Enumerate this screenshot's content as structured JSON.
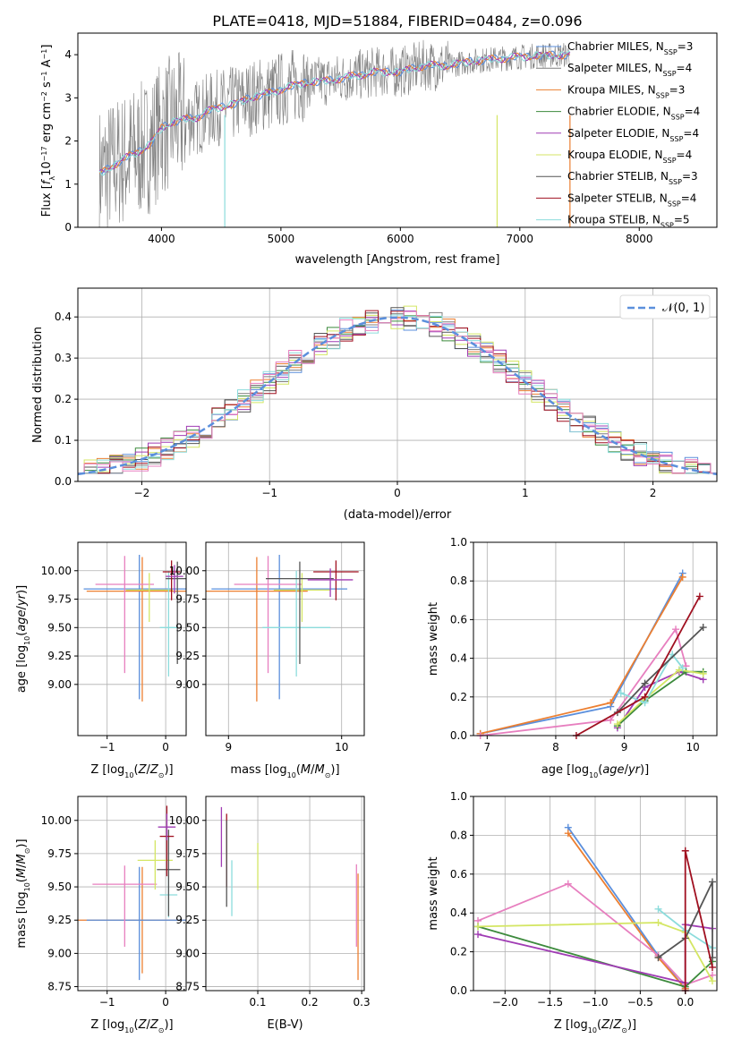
{
  "figure_title": "PLATE=0418, MJD=51884, FIBERID=0484, z=0.096",
  "colors": {
    "Chabrier MILES": "#5b8fdc",
    "Salpeter MILES": "#7f7f7f",
    "Kroupa MILES": "#ec7f31",
    "Chabrier ELODIE": "#3c8a3c",
    "Salpeter ELODIE": "#a03cb4",
    "Kroupa ELODIE": "#d4e664",
    "Chabrier STELIB": "#555555",
    "Salpeter STELIB": "#a01020",
    "Kroupa STELIB": "#8cdcdc",
    "pink": "#e77fbf"
  },
  "chart_data": [
    {
      "id": "spectrum",
      "type": "line",
      "title": "PLATE=0418, MJD=51884, FIBERID=0484, z=0.096",
      "xlabel": "wavelength [Angstrom, rest frame]",
      "ylabel": "Flux [f_λ 10^-17 erg cm^-2 s^-1 A^-1]",
      "xlim": [
        3300,
        8650
      ],
      "ylim": [
        0,
        4.5
      ],
      "xticks": [
        4000,
        5000,
        6000,
        7000,
        8000
      ],
      "yticks": [
        0,
        1,
        2,
        3,
        4
      ],
      "legend": [
        "Chabrier MILES, N_SSP=3",
        "Salpeter MILES, N_SSP=4",
        "Kroupa MILES, N_SSP=3",
        "Chabrier ELODIE, N_SSP=4",
        "Salpeter ELODIE, N_SSP=4",
        "Kroupa ELODIE, N_SSP=4",
        "Chabrier STELIB, N_SSP=3",
        "Salpeter STELIB, N_SSP=4",
        "Kroupa STELIB, N_SSP=5"
      ],
      "legend_position": "lower-right",
      "model_curve": {
        "x": [
          3500,
          3600,
          3700,
          3800,
          3900,
          4000,
          4100,
          4200,
          4300,
          4400,
          4500,
          4600,
          4700,
          4800,
          4900,
          5000,
          5200,
          5400,
          5600,
          5800,
          6000,
          6200,
          6400,
          6600,
          6800,
          7000,
          7200,
          7400
        ],
        "y": [
          1.25,
          1.45,
          1.6,
          1.75,
          1.9,
          2.3,
          2.45,
          2.5,
          2.55,
          2.7,
          2.8,
          2.85,
          2.95,
          3.05,
          3.1,
          3.2,
          3.35,
          3.4,
          3.5,
          3.6,
          3.6,
          3.75,
          3.75,
          3.85,
          3.9,
          3.95,
          3.98,
          4.0
        ]
      }
    },
    {
      "id": "residuals",
      "type": "line",
      "xlabel": "(data-model)/error",
      "ylabel": "Normed distribution",
      "xlim": [
        -2.5,
        2.5
      ],
      "ylim": [
        0,
        0.47
      ],
      "xticks": [
        -2,
        -1,
        0,
        1,
        2
      ],
      "yticks": [
        0.0,
        0.1,
        0.2,
        0.3,
        0.4
      ],
      "legend": [
        "𝒩(0, 1)"
      ],
      "legend_position": "top-right",
      "reference_curve": "gaussian N(0,1)"
    },
    {
      "id": "age-vs-Z",
      "type": "scatter",
      "xlabel": "Z [log10(Z/Z⊙)]",
      "ylabel": "age  [log10(age/yr)]",
      "xlim": [
        -1.5,
        0.35
      ],
      "ylim": [
        8.55,
        10.25
      ],
      "xticks": [
        -1,
        0
      ],
      "yticks": [
        9.0,
        9.25,
        9.5,
        9.75,
        10.0
      ],
      "points": [
        {
          "series": "Chabrier MILES",
          "x": -0.45,
          "y": 9.84,
          "xerr": 0.95,
          "yerr": [
            0.97,
            0.3
          ]
        },
        {
          "series": "Kroupa MILES",
          "x": -0.4,
          "y": 9.82,
          "xerr": 0.95,
          "yerr": [
            0.97,
            0.3
          ]
        },
        {
          "series": "pink",
          "x": -0.7,
          "y": 9.88,
          "xerr": 0.5,
          "yerr": [
            0.78,
            0.25
          ]
        },
        {
          "series": "Kroupa ELODIE",
          "x": -0.28,
          "y": 9.83,
          "xerr": 0.4,
          "yerr": [
            0.28,
            0.15
          ]
        },
        {
          "series": "Kroupa STELIB",
          "x": 0.05,
          "y": 9.5,
          "xerr": 0.15,
          "yerr": [
            0.43,
            0.5
          ]
        },
        {
          "series": "Chabrier STELIB",
          "x": 0.2,
          "y": 9.93,
          "xerr": 0.2,
          "yerr": [
            0.75,
            0.15
          ]
        },
        {
          "series": "Salpeter STELIB",
          "x": 0.1,
          "y": 9.99,
          "xerr": 0.15,
          "yerr": [
            0.25,
            0.1
          ]
        },
        {
          "series": "Salpeter ELODIE",
          "x": 0.15,
          "y": 9.95,
          "xerr": 0.15,
          "yerr": [
            0.15,
            0.1
          ]
        }
      ]
    },
    {
      "id": "age-vs-mass",
      "type": "scatter",
      "xlabel": "mass [log10(M/M⊙)]",
      "ylabel": "",
      "xlim": [
        8.8,
        10.2
      ],
      "ylim": [
        8.55,
        10.25
      ],
      "xticks": [
        9,
        10
      ],
      "yticks": [
        9.0,
        9.25,
        9.5,
        9.75,
        10.0
      ],
      "points": [
        {
          "series": "Chabrier MILES",
          "x": 9.45,
          "y": 9.84,
          "xerr": 0.6,
          "yerr": [
            0.97,
            0.3
          ]
        },
        {
          "series": "Kroupa MILES",
          "x": 9.25,
          "y": 9.82,
          "xerr": 0.45,
          "yerr": [
            0.97,
            0.3
          ]
        },
        {
          "series": "pink",
          "x": 9.35,
          "y": 9.88,
          "xerr": 0.3,
          "yerr": [
            0.78,
            0.25
          ]
        },
        {
          "series": "Kroupa ELODIE",
          "x": 9.65,
          "y": 9.83,
          "xerr": 0.25,
          "yerr": [
            0.28,
            0.15
          ]
        },
        {
          "series": "Kroupa STELIB",
          "x": 9.6,
          "y": 9.5,
          "xerr": 0.3,
          "yerr": [
            0.43,
            0.5
          ]
        },
        {
          "series": "Chabrier STELIB",
          "x": 9.63,
          "y": 9.93,
          "xerr": 0.3,
          "yerr": [
            0.75,
            0.15
          ]
        },
        {
          "series": "Salpeter STELIB",
          "x": 9.95,
          "y": 9.99,
          "xerr": 0.2,
          "yerr": [
            0.25,
            0.1
          ]
        },
        {
          "series": "Salpeter ELODIE",
          "x": 9.9,
          "y": 9.92,
          "xerr": 0.2,
          "yerr": [
            0.15,
            0.1
          ]
        }
      ]
    },
    {
      "id": "weight-vs-age",
      "type": "line",
      "xlabel": "age  [log10(age/yr)]",
      "ylabel": "mass weight",
      "xlim": [
        6.8,
        10.35
      ],
      "ylim": [
        0,
        1.0
      ],
      "xticks": [
        7,
        8,
        9,
        10
      ],
      "yticks": [
        0.0,
        0.2,
        0.4,
        0.6,
        0.8,
        1.0
      ],
      "series": [
        {
          "name": "Chabrier MILES",
          "x": [
            6.9,
            8.8,
            9.85
          ],
          "y": [
            0.01,
            0.15,
            0.84
          ]
        },
        {
          "name": "Kroupa MILES",
          "x": [
            6.9,
            8.8,
            9.85
          ],
          "y": [
            0.01,
            0.17,
            0.82
          ]
        },
        {
          "name": "pink",
          "x": [
            6.9,
            8.8,
            9.75,
            9.9
          ],
          "y": [
            0.0,
            0.08,
            0.55,
            0.36
          ]
        },
        {
          "name": "Salpeter ELODIE",
          "x": [
            8.9,
            9.3,
            9.8,
            10.15
          ],
          "y": [
            0.04,
            0.25,
            0.33,
            0.29
          ]
        },
        {
          "name": "Chabrier ELODIE",
          "x": [
            8.9,
            9.3,
            9.9,
            10.15
          ],
          "y": [
            0.05,
            0.18,
            0.33,
            0.33
          ]
        },
        {
          "name": "Kroupa ELODIE",
          "x": [
            8.9,
            9.3,
            9.8,
            10.15
          ],
          "y": [
            0.06,
            0.19,
            0.34,
            0.32
          ]
        },
        {
          "name": "Kroupa STELIB",
          "x": [
            8.95,
            9.3,
            9.7,
            9.85
          ],
          "y": [
            0.22,
            0.17,
            0.42,
            0.35
          ]
        },
        {
          "name": "Chabrier STELIB",
          "x": [
            8.9,
            9.3,
            10.15
          ],
          "y": [
            0.12,
            0.27,
            0.56
          ]
        },
        {
          "name": "Salpeter STELIB",
          "x": [
            8.3,
            9.3,
            10.1
          ],
          "y": [
            0.0,
            0.2,
            0.72
          ]
        }
      ]
    },
    {
      "id": "mass-vs-Z",
      "type": "scatter",
      "xlabel": "Z [log10(Z/Z⊙)]",
      "ylabel": "mass [log10(M/M⊙)]",
      "xlim": [
        -1.5,
        0.35
      ],
      "ylim": [
        8.72,
        10.18
      ],
      "xticks": [
        -1,
        0
      ],
      "yticks": [
        8.75,
        9.0,
        9.25,
        9.5,
        9.75,
        10.0
      ],
      "points": [
        {
          "series": "Kroupa MILES",
          "x": -0.4,
          "y": 9.25,
          "xerr": 1.1,
          "yerr": [
            0.4,
            0.4
          ]
        },
        {
          "series": "Chabrier MILES",
          "x": -0.45,
          "y": 9.25,
          "xerr": 0.9,
          "yerr": [
            0.45,
            0.4
          ]
        },
        {
          "series": "pink",
          "x": -0.7,
          "y": 9.52,
          "xerr": 0.55,
          "yerr": [
            0.47,
            0.14
          ]
        },
        {
          "series": "Kroupa ELODIE",
          "x": -0.18,
          "y": 9.7,
          "xerr": 0.3,
          "yerr": [
            0.22,
            0.15
          ]
        },
        {
          "series": "Kroupa STELIB",
          "x": 0.05,
          "y": 9.44,
          "xerr": 0.15,
          "yerr": [
            0.17,
            0.15
          ]
        },
        {
          "series": "Chabrier STELIB",
          "x": 0.05,
          "y": 9.63,
          "xerr": 0.2,
          "yerr": [
            0.35,
            0.3
          ]
        },
        {
          "series": "Salpeter STELIB",
          "x": 0.02,
          "y": 9.88,
          "xerr": 0.12,
          "yerr": [
            0.3,
            0.23
          ]
        },
        {
          "series": "Salpeter ELODIE",
          "x": 0.02,
          "y": 9.95,
          "xerr": 0.15,
          "yerr": [
            0.1,
            0.1
          ]
        }
      ]
    },
    {
      "id": "mass-vs-ebv",
      "type": "scatter",
      "xlabel": "E(B-V)",
      "ylabel": "",
      "xlim": [
        0.0,
        0.305
      ],
      "ylim": [
        8.72,
        10.18
      ],
      "xticks": [
        0.1,
        0.2,
        0.3
      ],
      "yticks": [
        8.75,
        9.0,
        9.25,
        9.5,
        9.75,
        10.0
      ],
      "points": [
        {
          "series": "Salpeter ELODIE",
          "x": 0.03,
          "y": 9.95,
          "yerr": [
            0.3,
            0.15
          ]
        },
        {
          "series": "Salpeter STELIB",
          "x": 0.04,
          "y": 9.8,
          "yerr": [
            0.3,
            0.25
          ]
        },
        {
          "series": "Chabrier STELIB",
          "x": 0.04,
          "y": 9.7,
          "yerr": [
            0.35,
            0.3
          ]
        },
        {
          "series": "Kroupa STELIB",
          "x": 0.05,
          "y": 9.5,
          "yerr": [
            0.22,
            0.2
          ]
        },
        {
          "series": "Kroupa ELODIE",
          "x": 0.1,
          "y": 9.65,
          "yerr": [
            0.17,
            0.18
          ]
        },
        {
          "series": "pink",
          "x": 0.29,
          "y": 9.45,
          "yerr": [
            0.4,
            0.22
          ]
        },
        {
          "series": "Kroupa MILES",
          "x": 0.293,
          "y": 9.25,
          "yerr": [
            0.45,
            0.35
          ]
        }
      ]
    },
    {
      "id": "weight-vs-Z",
      "type": "line",
      "xlabel": "Z [log10(Z/Z⊙)]",
      "ylabel": "mass weight",
      "xlim": [
        -2.35,
        0.35
      ],
      "ylim": [
        0,
        1.0
      ],
      "xticks": [
        -2.0,
        -1.5,
        -1.0,
        -0.5,
        0.0
      ],
      "yticks": [
        0.0,
        0.2,
        0.4,
        0.6,
        0.8,
        1.0
      ],
      "series": [
        {
          "name": "Chabrier MILES",
          "x": [
            -1.3,
            -0.3,
            0.0
          ],
          "y": [
            0.84,
            0.18,
            0.01
          ]
        },
        {
          "name": "Kroupa MILES",
          "x": [
            -1.3,
            -0.3,
            0.0
          ],
          "y": [
            0.81,
            0.17,
            0.01
          ]
        },
        {
          "name": "pink",
          "x": [
            -2.3,
            -1.3,
            -0.3,
            0.0,
            0.3
          ],
          "y": [
            0.36,
            0.55,
            0.18,
            0.03,
            0.08
          ]
        },
        {
          "name": "Chabrier ELODIE",
          "x": [
            -2.3,
            0.0,
            0.3
          ],
          "y": [
            0.33,
            0.02,
            0.15
          ]
        },
        {
          "name": "Salpeter ELODIE",
          "x": [
            -2.3,
            0.0,
            0.0,
            0.3
          ],
          "y": [
            0.29,
            0.04,
            0.34,
            0.32
          ]
        },
        {
          "name": "Kroupa ELODIE",
          "x": [
            -2.3,
            -0.3,
            0.0,
            0.3
          ],
          "y": [
            0.33,
            0.35,
            0.3,
            0.05
          ]
        },
        {
          "name": "Kroupa STELIB",
          "x": [
            -0.3,
            0.0,
            0.3
          ],
          "y": [
            0.42,
            0.31,
            0.22
          ]
        },
        {
          "name": "Chabrier STELIB",
          "x": [
            -0.3,
            0.0,
            0.3,
            0.3
          ],
          "y": [
            0.17,
            0.27,
            0.56,
            0.17
          ]
        },
        {
          "name": "Salpeter STELIB",
          "x": [
            0.0,
            0.0,
            0.3
          ],
          "y": [
            0.0,
            0.72,
            0.12
          ]
        }
      ]
    }
  ]
}
